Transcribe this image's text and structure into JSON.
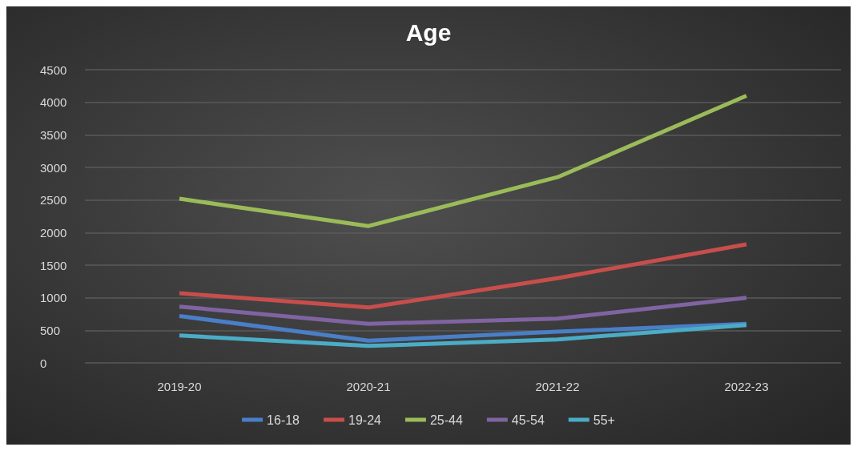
{
  "chart_data": {
    "type": "line",
    "title": "Age",
    "categories": [
      "2019-20",
      "2020-21",
      "2021-22",
      "2022-23"
    ],
    "series": [
      {
        "name": "16-18",
        "color": "#4a7fc8",
        "values": [
          720,
          340,
          480,
          600
        ]
      },
      {
        "name": "19-24",
        "color": "#c84e4b",
        "values": [
          1070,
          850,
          1300,
          1820
        ]
      },
      {
        "name": "25-44",
        "color": "#9bbb59",
        "values": [
          2520,
          2100,
          2850,
          4100
        ]
      },
      {
        "name": "45-54",
        "color": "#8064a2",
        "values": [
          865,
          600,
          680,
          1000
        ]
      },
      {
        "name": "55+",
        "color": "#4bacc6",
        "values": [
          420,
          260,
          360,
          580
        ]
      }
    ],
    "ylim": [
      0,
      4500
    ],
    "yticks": [
      0,
      500,
      1000,
      1500,
      2000,
      2500,
      3000,
      3500,
      4000,
      4500
    ],
    "grid": "y",
    "legend": "bottom",
    "marker": "none",
    "line_style": "solid"
  }
}
